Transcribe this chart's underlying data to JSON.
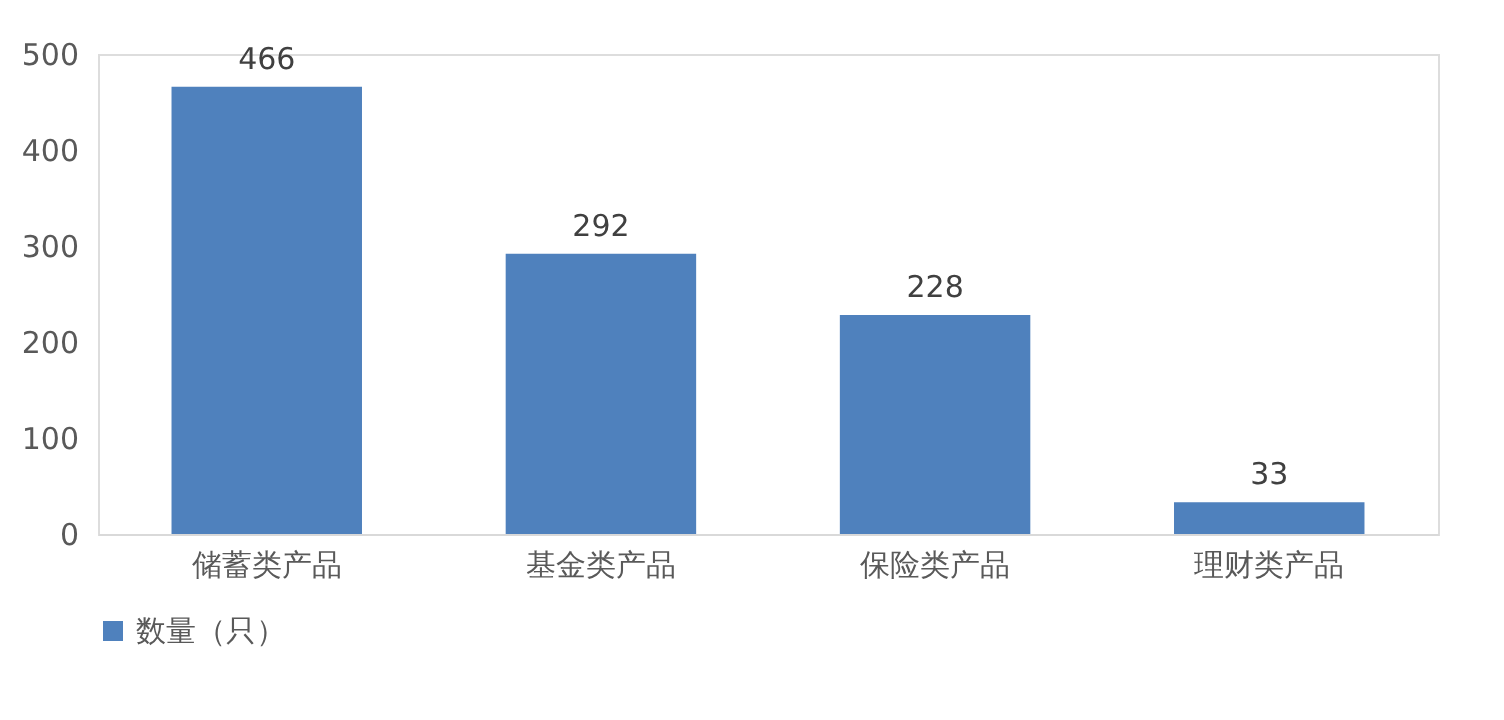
{
  "chart_data": {
    "type": "bar",
    "categories": [
      "储蓄类产品",
      "基金类产品",
      "保险类产品",
      "理财类产品"
    ],
    "series": [
      {
        "name": "数量（只）",
        "color": "#4f81bd",
        "values": [
          466,
          292,
          228,
          33
        ]
      }
    ],
    "ylim": [
      0,
      500
    ],
    "yticks": [
      0,
      100,
      200,
      300,
      400,
      500
    ],
    "data_labels": true,
    "grid": false,
    "legend": "bottom"
  }
}
